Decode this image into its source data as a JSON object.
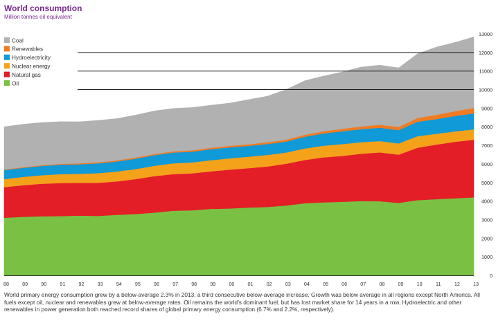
{
  "chart_data": {
    "type": "area",
    "stacked": true,
    "title": "World consumption",
    "subtitle": "Million tonnes oil equivalent",
    "x": [
      "88",
      "89",
      "90",
      "91",
      "92",
      "93",
      "94",
      "95",
      "96",
      "97",
      "98",
      "99",
      "00",
      "01",
      "02",
      "03",
      "04",
      "05",
      "06",
      "07",
      "08",
      "09",
      "10",
      "11",
      "12",
      "13"
    ],
    "ylim": [
      0,
      13000
    ],
    "yticks": [
      0,
      1000,
      2000,
      3000,
      4000,
      5000,
      6000,
      7000,
      8000,
      9000,
      10000,
      11000,
      12000,
      13000
    ],
    "ytick_labels": [
      "0",
      "1000",
      "2000",
      "3000",
      "4000",
      "5000",
      "6000",
      "7000",
      "8000",
      "9000",
      "10000",
      "11000",
      "12000",
      "13000"
    ],
    "y_axis_side": "right",
    "gridlines": [
      10000,
      11000,
      12000
    ],
    "legend_position": "top-left",
    "series": [
      {
        "name": "Oil",
        "color": "#7ac143",
        "values": [
          3100,
          3150,
          3180,
          3190,
          3220,
          3200,
          3260,
          3300,
          3380,
          3480,
          3500,
          3580,
          3600,
          3650,
          3680,
          3760,
          3880,
          3930,
          3960,
          4000,
          3990,
          3900,
          4050,
          4100,
          4150,
          4200
        ]
      },
      {
        "name": "Natural gas",
        "color": "#e31e27",
        "values": [
          1650,
          1700,
          1750,
          1780,
          1760,
          1780,
          1800,
          1880,
          1960,
          1970,
          1990,
          2020,
          2090,
          2120,
          2180,
          2250,
          2330,
          2420,
          2470,
          2550,
          2630,
          2600,
          2820,
          2940,
          3040,
          3100
        ]
      },
      {
        "name": "Nuclear energy",
        "color": "#f5a21b",
        "values": [
          430,
          450,
          460,
          480,
          490,
          520,
          530,
          540,
          560,
          580,
          590,
          600,
          610,
          620,
          620,
          600,
          620,
          630,
          640,
          620,
          610,
          600,
          620,
          580,
          560,
          560
        ]
      },
      {
        "name": "Hydroelectricity",
        "color": "#109ad7",
        "values": [
          490,
          490,
          500,
          510,
          510,
          530,
          540,
          560,
          570,
          580,
          580,
          590,
          590,
          580,
          590,
          590,
          630,
          660,
          690,
          700,
          720,
          720,
          780,
          790,
          830,
          860
        ]
      },
      {
        "name": "Renewables",
        "color": "#f07b22",
        "values": [
          30,
          35,
          40,
          45,
          50,
          55,
          60,
          62,
          65,
          70,
          75,
          80,
          85,
          90,
          95,
          100,
          110,
          120,
          130,
          145,
          160,
          170,
          200,
          230,
          260,
          290
        ]
      },
      {
        "name": "Coal",
        "color": "#b1b1b1",
        "values": [
          2300,
          2310,
          2300,
          2270,
          2240,
          2260,
          2250,
          2290,
          2320,
          2310,
          2300,
          2290,
          2300,
          2400,
          2480,
          2700,
          2910,
          2970,
          3060,
          3200,
          3210,
          3180,
          3460,
          3650,
          3700,
          3830
        ]
      }
    ]
  },
  "caption": "World primary energy consumption grew by a below-average 2.3% in 2013, a third consecutive below-average increase. Growth was below average in all regions except North America. All fuels except oil, nuclear and renewables grew at below-average rates. Oil remains the world’s dominant fuel, but has lost market share for 14 years in a row. Hydroelectric and other renewables in power generation both reached record shares of global primary energy consumption (6.7% and 2.2%, respectively)."
}
